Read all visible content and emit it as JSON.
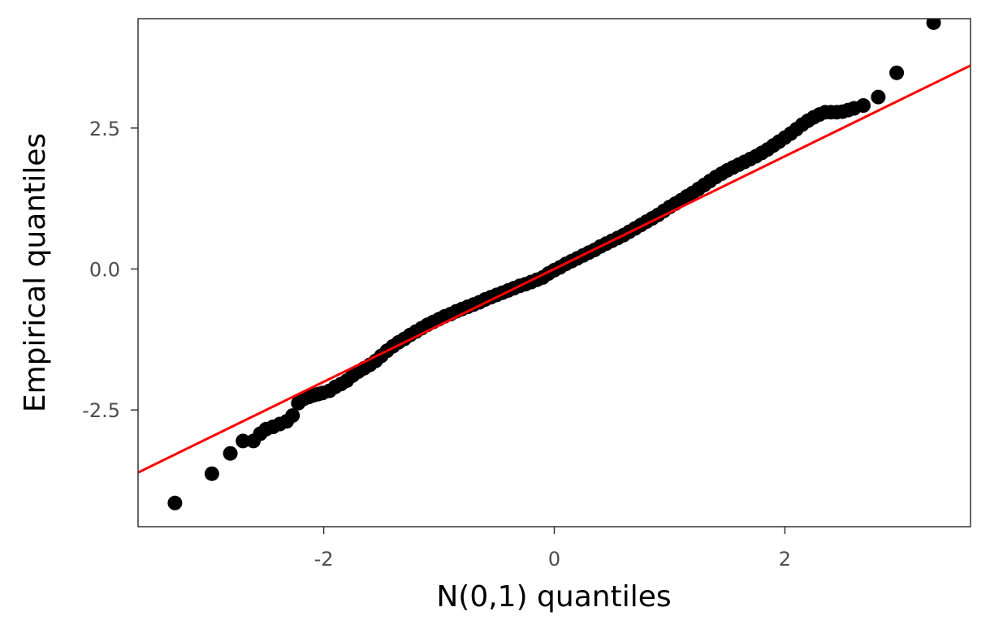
{
  "chart_data": {
    "type": "scatter",
    "title": "",
    "xlabel": "N(0,1) quantiles",
    "ylabel": "Empirical quantiles",
    "xlim": [
      -3.61,
      3.61
    ],
    "ylim": [
      -4.57,
      4.44
    ],
    "xticks": [
      -2,
      0,
      2
    ],
    "xtick_labels": [
      "-2",
      "0",
      "2"
    ],
    "yticks": [
      -2.5,
      0.0,
      2.5
    ],
    "ytick_labels": [
      "-2.5",
      "0.0",
      "2.5"
    ],
    "grid": false,
    "legend": "none",
    "point_color": "#000000",
    "reference_line": {
      "color": "#ff0000",
      "intercept": 0,
      "slope": 1
    },
    "series": [
      {
        "x": [
          -3.29,
          -2.97,
          -2.81,
          -2.7,
          -2.61,
          -2.55,
          -2.5,
          -2.44,
          -2.38,
          -2.32,
          -2.27,
          -2.22,
          -2.17,
          -2.13,
          -2.09,
          -2.05,
          -2.01,
          -1.95,
          -1.9,
          -1.85,
          -1.8,
          -1.75,
          -1.7,
          -1.65,
          -1.6,
          -1.55,
          -1.5,
          -1.45,
          -1.4,
          -1.35,
          -1.3,
          -1.25,
          -1.2,
          -1.15,
          -1.1,
          -1.05,
          -1.0,
          -0.95,
          -0.9,
          -0.85,
          -0.8,
          -0.75,
          -0.7,
          -0.65,
          -0.6,
          -0.55,
          -0.5,
          -0.45,
          -0.4,
          -0.35,
          -0.3,
          -0.25,
          -0.2,
          -0.15,
          -0.1,
          -0.05,
          0.0,
          0.05,
          0.1,
          0.15,
          0.2,
          0.25,
          0.3,
          0.35,
          0.4,
          0.45,
          0.5,
          0.55,
          0.6,
          0.65,
          0.7,
          0.75,
          0.8,
          0.85,
          0.9,
          0.95,
          1.0,
          1.05,
          1.1,
          1.15,
          1.2,
          1.25,
          1.3,
          1.35,
          1.4,
          1.45,
          1.5,
          1.55,
          1.6,
          1.65,
          1.7,
          1.75,
          1.8,
          1.85,
          1.9,
          1.95,
          2.0,
          2.05,
          2.1,
          2.15,
          2.2,
          2.25,
          2.3,
          2.35,
          2.4,
          2.45,
          2.5,
          2.55,
          2.6,
          2.68,
          2.81,
          2.97,
          3.29
        ],
        "y": [
          -4.15,
          -3.63,
          -3.27,
          -3.05,
          -3.05,
          -2.92,
          -2.84,
          -2.8,
          -2.75,
          -2.7,
          -2.6,
          -2.38,
          -2.3,
          -2.27,
          -2.24,
          -2.22,
          -2.2,
          -2.16,
          -2.09,
          -2.04,
          -1.98,
          -1.89,
          -1.82,
          -1.76,
          -1.7,
          -1.63,
          -1.54,
          -1.45,
          -1.37,
          -1.3,
          -1.24,
          -1.17,
          -1.11,
          -1.05,
          -0.99,
          -0.94,
          -0.89,
          -0.84,
          -0.8,
          -0.75,
          -0.71,
          -0.67,
          -0.63,
          -0.59,
          -0.54,
          -0.5,
          -0.46,
          -0.42,
          -0.38,
          -0.34,
          -0.3,
          -0.27,
          -0.23,
          -0.19,
          -0.15,
          -0.08,
          -0.02,
          0.03,
          0.09,
          0.14,
          0.19,
          0.24,
          0.29,
          0.34,
          0.4,
          0.45,
          0.5,
          0.55,
          0.6,
          0.66,
          0.72,
          0.78,
          0.84,
          0.9,
          0.96,
          1.03,
          1.1,
          1.16,
          1.22,
          1.29,
          1.35,
          1.42,
          1.49,
          1.56,
          1.63,
          1.69,
          1.75,
          1.8,
          1.85,
          1.9,
          1.95,
          2.0,
          2.06,
          2.12,
          2.19,
          2.26,
          2.33,
          2.4,
          2.48,
          2.56,
          2.63,
          2.69,
          2.74,
          2.78,
          2.78,
          2.78,
          2.79,
          2.82,
          2.85,
          2.9,
          3.05,
          3.48,
          4.37
        ]
      }
    ]
  }
}
